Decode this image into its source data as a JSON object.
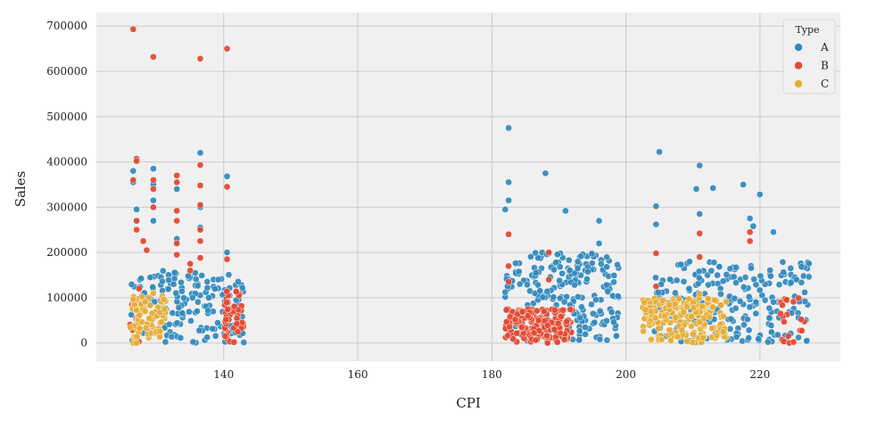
{
  "chart_data": {
    "type": "scatter",
    "title": "",
    "xlabel": "CPI",
    "ylabel": "Sales",
    "xlim": [
      121,
      232
    ],
    "ylim": [
      -40000,
      730000
    ],
    "x_ticks": [
      140,
      160,
      180,
      200,
      220
    ],
    "y_ticks": [
      0,
      100000,
      200000,
      300000,
      400000,
      500000,
      600000,
      700000
    ],
    "x_tick_labels": [
      "140",
      "160",
      "180",
      "200",
      "220"
    ],
    "y_tick_labels": [
      "0",
      "100000",
      "200000",
      "300000",
      "400000",
      "500000",
      "600000",
      "700000"
    ],
    "grid": true,
    "legend": {
      "title": "Type",
      "position": "top-right"
    },
    "series": [
      {
        "name": "A",
        "color": "#348ABD",
        "clusters": [
          {
            "x_range": [
              126,
              143
            ],
            "y_max": 160000,
            "density": 0.55
          },
          {
            "x_range": [
              182,
              199
            ],
            "y_max": 200000,
            "density": 0.75
          },
          {
            "x_range": [
              204,
              227.5
            ],
            "y_max": 180000,
            "density": 0.55
          }
        ],
        "outliers": [
          [
            126.5,
            380000
          ],
          [
            126.5,
            355000
          ],
          [
            127,
            295000
          ],
          [
            127,
            270000
          ],
          [
            129.5,
            385000
          ],
          [
            129.5,
            350000
          ],
          [
            129.5,
            315000
          ],
          [
            129.5,
            270000
          ],
          [
            133,
            340000
          ],
          [
            133,
            230000
          ],
          [
            136.5,
            420000
          ],
          [
            136.5,
            300000
          ],
          [
            136.5,
            255000
          ],
          [
            140.5,
            368000
          ],
          [
            140.5,
            200000
          ],
          [
            182.5,
            475000
          ],
          [
            182.5,
            355000
          ],
          [
            182.5,
            315000
          ],
          [
            182,
            295000
          ],
          [
            188,
            375000
          ],
          [
            191,
            292000
          ],
          [
            196,
            270000
          ],
          [
            196,
            220000
          ],
          [
            205,
            422000
          ],
          [
            204.5,
            302000
          ],
          [
            204.5,
            262000
          ],
          [
            210.5,
            340000
          ],
          [
            211,
            392000
          ],
          [
            211,
            285000
          ],
          [
            213,
            342000
          ],
          [
            217.5,
            350000
          ],
          [
            218.5,
            275000
          ],
          [
            220,
            328000
          ],
          [
            219,
            258000
          ],
          [
            222,
            245000
          ]
        ]
      },
      {
        "name": "B",
        "color": "#E24A33",
        "clusters": [
          {
            "x_range": [
              126,
              127.5
            ],
            "y_max": 130000,
            "density": 0.6
          },
          {
            "x_range": [
              140,
              143
            ],
            "y_max": 115000,
            "density": 0.9
          },
          {
            "x_range": [
              182,
              192
            ],
            "y_max": 75000,
            "density": 1.0
          },
          {
            "x_range": [
              223,
              227
            ],
            "y_max": 100000,
            "density": 0.3
          }
        ],
        "outliers": [
          [
            126.5,
            693000
          ],
          [
            129.5,
            632000
          ],
          [
            136.5,
            628000
          ],
          [
            140.5,
            650000
          ],
          [
            127,
            407000
          ],
          [
            127,
            402000
          ],
          [
            126.5,
            360000
          ],
          [
            127,
            270000
          ],
          [
            127,
            250000
          ],
          [
            128,
            225000
          ],
          [
            128.5,
            205000
          ],
          [
            129.5,
            360000
          ],
          [
            129.5,
            340000
          ],
          [
            129.5,
            300000
          ],
          [
            133,
            370000
          ],
          [
            133,
            355000
          ],
          [
            133,
            292000
          ],
          [
            133,
            270000
          ],
          [
            133,
            220000
          ],
          [
            133,
            195000
          ],
          [
            135,
            175000
          ],
          [
            135,
            160000
          ],
          [
            136.5,
            393000
          ],
          [
            136.5,
            348000
          ],
          [
            136.5,
            305000
          ],
          [
            136.5,
            250000
          ],
          [
            136.5,
            225000
          ],
          [
            136.5,
            188000
          ],
          [
            140.5,
            345000
          ],
          [
            140.5,
            185000
          ],
          [
            182.5,
            240000
          ],
          [
            182.5,
            170000
          ],
          [
            182.5,
            135000
          ],
          [
            188.5,
            200000
          ],
          [
            188.5,
            140000
          ],
          [
            204.5,
            198000
          ],
          [
            204.5,
            125000
          ],
          [
            211,
            242000
          ],
          [
            211,
            190000
          ],
          [
            218.5,
            245000
          ],
          [
            218.5,
            225000
          ]
        ]
      },
      {
        "name": "C",
        "color": "#E5AE38",
        "clusters": [
          {
            "x_range": [
              126,
              131.5
            ],
            "y_max": 105000,
            "density": 0.8
          },
          {
            "x_range": [
              202.5,
              215
            ],
            "y_max": 100000,
            "density": 0.9
          }
        ],
        "outliers": [
          [
            126.5,
            0
          ],
          [
            127,
            0
          ],
          [
            129.5,
            110000
          ],
          [
            211,
            108000
          ]
        ]
      }
    ]
  }
}
